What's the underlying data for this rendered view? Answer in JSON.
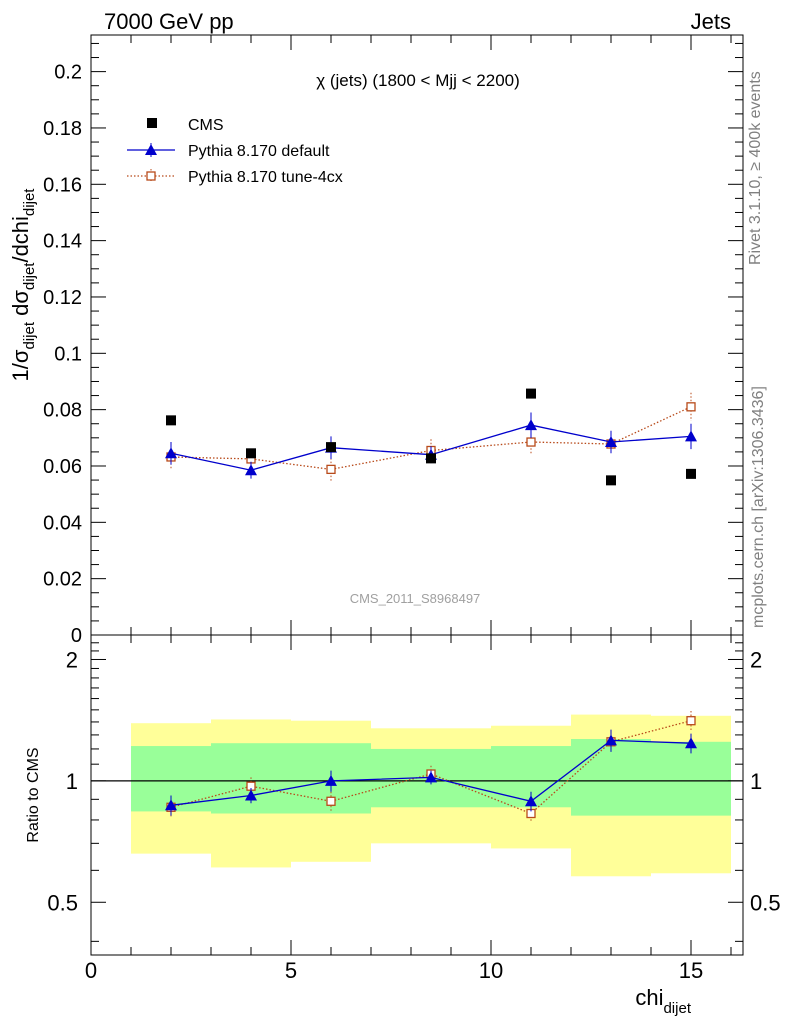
{
  "header": {
    "left": "7000 GeV pp",
    "right": "Jets"
  },
  "side_labels": {
    "top": "Rivet 3.1.10, ≥ 400k events",
    "bottom": "mcplots.cern.ch [arXiv:1306.3436]"
  },
  "analysis_id": "CMS_2011_S8968497",
  "colors": {
    "data": "#000000",
    "default": "#0000cc",
    "tune": "#b84a1a",
    "band_inner": "#99ff99",
    "band_outer": "#ffff99"
  },
  "chart_data": [
    {
      "type": "scatter",
      "panel": "main",
      "title": "χ (jets) (1800 < Mjj < 2200)",
      "ylabel_parts": {
        "a": "1/σ",
        "a_sub": "dijet",
        "b": " dσ",
        "b_sub": "dijet",
        "c": "/dchi",
        "c_sub": "dijet"
      },
      "xlim": [
        0,
        16.3
      ],
      "ylim": [
        0,
        0.213
      ],
      "yticks": [
        0,
        0.02,
        0.04,
        0.06,
        0.08,
        0.1,
        0.12,
        0.14,
        0.16,
        0.18,
        0.2
      ],
      "ytick_labels": [
        "0",
        "0.02",
        "0.04",
        "0.06",
        "0.08",
        "0.1",
        "0.12",
        "0.14",
        "0.16",
        "0.18",
        "0.2"
      ],
      "legend_position": "top-left",
      "series": [
        {
          "name": "CMS",
          "marker": "square",
          "x": [
            2,
            4,
            6,
            8.5,
            11,
            13,
            15
          ],
          "y": [
            0.0762,
            0.0645,
            0.0667,
            0.0627,
            0.0857,
            0.0549,
            0.0572
          ]
        },
        {
          "name": "Pythia 8.170 default",
          "marker": "triangle",
          "line": "solid",
          "x": [
            2,
            4,
            6,
            8.5,
            11,
            13,
            15
          ],
          "y": [
            0.0645,
            0.0585,
            0.0665,
            0.064,
            0.0745,
            0.0685,
            0.0705
          ],
          "err": [
            0.004,
            0.003,
            0.004,
            0.003,
            0.0045,
            0.004,
            0.0045
          ]
        },
        {
          "name": "Pythia 8.170 tune-4cx",
          "marker": "open-square",
          "line": "dotted",
          "x": [
            2,
            4,
            6,
            8.5,
            11,
            13,
            15
          ],
          "y": [
            0.0632,
            0.0625,
            0.0588,
            0.0655,
            0.0685,
            0.0678,
            0.081
          ],
          "err": [
            0.004,
            0.003,
            0.004,
            0.004,
            0.004,
            0.003,
            0.005
          ]
        }
      ]
    },
    {
      "type": "scatter",
      "panel": "ratio",
      "ylabel": "Ratio to CMS",
      "xlabel": "chi",
      "xlabel_sub": "dijet",
      "xlim": [
        0,
        16.3
      ],
      "ylim": [
        0.37,
        2.3
      ],
      "log_y": true,
      "xticks": [
        0,
        5,
        10,
        15
      ],
      "xtick_labels": [
        "0",
        "5",
        "10",
        "15"
      ],
      "ytick_labels_left": [
        "0.5",
        "1",
        "2"
      ],
      "ytick_labels_right": [
        "0.5",
        "1",
        "2"
      ],
      "yticks": [
        0.5,
        1,
        2
      ],
      "reference_line": 1,
      "bands": [
        {
          "x0": 1,
          "x1": 3,
          "inner": [
            0.84,
            1.22
          ],
          "outer": [
            0.66,
            1.39
          ]
        },
        {
          "x0": 3,
          "x1": 5,
          "inner": [
            0.83,
            1.24
          ],
          "outer": [
            0.61,
            1.42
          ]
        },
        {
          "x0": 5,
          "x1": 7,
          "inner": [
            0.83,
            1.24
          ],
          "outer": [
            0.63,
            1.41
          ]
        },
        {
          "x0": 7,
          "x1": 10,
          "inner": [
            0.86,
            1.2
          ],
          "outer": [
            0.7,
            1.35
          ]
        },
        {
          "x0": 10,
          "x1": 12,
          "inner": [
            0.86,
            1.22
          ],
          "outer": [
            0.68,
            1.37
          ]
        },
        {
          "x0": 12,
          "x1": 14,
          "inner": [
            0.82,
            1.27
          ],
          "outer": [
            0.58,
            1.46
          ]
        },
        {
          "x0": 14,
          "x1": 16,
          "inner": [
            0.82,
            1.25
          ],
          "outer": [
            0.59,
            1.45
          ]
        }
      ],
      "series": [
        {
          "name": "Pythia 8.170 default",
          "marker": "triangle",
          "line": "solid",
          "x": [
            2,
            4,
            6,
            8.5,
            11,
            13,
            15
          ],
          "y": [
            0.87,
            0.92,
            1.0,
            1.02,
            0.89,
            1.26,
            1.24
          ],
          "err": [
            0.05,
            0.04,
            0.06,
            0.04,
            0.05,
            0.08,
            0.07
          ]
        },
        {
          "name": "Pythia 8.170 tune-4cx",
          "marker": "open-square",
          "line": "dotted",
          "x": [
            2,
            4,
            6,
            8.5,
            11,
            13,
            15
          ],
          "y": [
            0.86,
            0.97,
            0.89,
            1.04,
            0.83,
            1.25,
            1.41
          ],
          "err": [
            0.05,
            0.05,
            0.05,
            0.05,
            0.04,
            0.05,
            0.08
          ]
        }
      ]
    }
  ]
}
